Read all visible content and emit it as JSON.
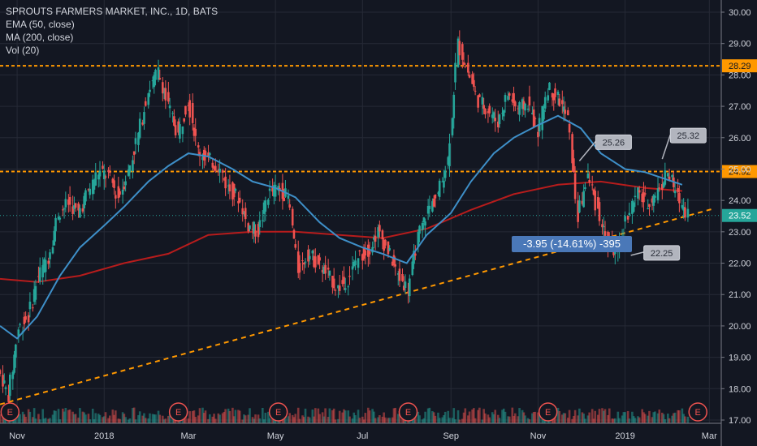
{
  "chart_data": {
    "type": "candlestick",
    "title": "SPROUTS FARMERS MARKET, INC., 1D, BATS",
    "indicators": [
      "EMA (50, close)",
      "MA (200, close)",
      "Vol (20)"
    ],
    "x_ticks": [
      "Nov",
      "2018",
      "Mar",
      "May",
      "Jul",
      "Sep",
      "Nov",
      "2019",
      "Mar"
    ],
    "y_ticks": [
      "30.00",
      "29.00",
      "28.00",
      "27.00",
      "26.00",
      "25.00",
      "24.00",
      "23.00",
      "22.00",
      "21.00",
      "20.00",
      "19.00",
      "18.00",
      "17.00"
    ],
    "ylim": [
      17.0,
      30.0
    ],
    "horizontal_levels": [
      {
        "value": 28.29,
        "label": "28.29"
      },
      {
        "value": 24.92,
        "label": "24.92"
      }
    ],
    "last_price": {
      "value": 23.52,
      "label": "23.52"
    },
    "price_path": [
      [
        "2017-10-20",
        18.6
      ],
      [
        "2017-10-27",
        17.8
      ],
      [
        "2017-11-03",
        19.9
      ],
      [
        "2017-11-10",
        20.3
      ],
      [
        "2017-11-17",
        21.6
      ],
      [
        "2017-11-24",
        22.2
      ],
      [
        "2017-12-01",
        23.6
      ],
      [
        "2017-12-08",
        23.9
      ],
      [
        "2017-12-15",
        23.6
      ],
      [
        "2017-12-22",
        24.3
      ],
      [
        "2017-12-29",
        24.9
      ],
      [
        "2018-01-05",
        24.8
      ],
      [
        "2018-01-12",
        24.1
      ],
      [
        "2018-01-19",
        24.9
      ],
      [
        "2018-01-26",
        26.1
      ],
      [
        "2018-02-02",
        27.5
      ],
      [
        "2018-02-09",
        28.1
      ],
      [
        "2018-02-16",
        27.0
      ],
      [
        "2018-02-23",
        26.1
      ],
      [
        "2018-03-02",
        27.2
      ],
      [
        "2018-03-09",
        25.6
      ],
      [
        "2018-03-16",
        25.3
      ],
      [
        "2018-03-23",
        25.1
      ],
      [
        "2018-03-30",
        24.4
      ],
      [
        "2018-04-06",
        24.1
      ],
      [
        "2018-04-13",
        23.2
      ],
      [
        "2018-04-20",
        23.0
      ],
      [
        "2018-04-27",
        24.2
      ],
      [
        "2018-05-04",
        24.4
      ],
      [
        "2018-05-11",
        24.1
      ],
      [
        "2018-05-18",
        21.8
      ],
      [
        "2018-05-25",
        22.3
      ],
      [
        "2018-06-01",
        22.0
      ],
      [
        "2018-06-08",
        21.6
      ],
      [
        "2018-06-15",
        21.2
      ],
      [
        "2018-06-22",
        21.5
      ],
      [
        "2018-06-29",
        22.2
      ],
      [
        "2018-07-06",
        22.4
      ],
      [
        "2018-07-13",
        23.0
      ],
      [
        "2018-07-20",
        22.4
      ],
      [
        "2018-07-27",
        21.6
      ],
      [
        "2018-08-03",
        21.2
      ],
      [
        "2018-08-10",
        22.8
      ],
      [
        "2018-08-17",
        23.7
      ],
      [
        "2018-08-24",
        24.2
      ],
      [
        "2018-08-31",
        25.3
      ],
      [
        "2018-09-07",
        29.0
      ],
      [
        "2018-09-14",
        28.1
      ],
      [
        "2018-09-21",
        27.2
      ],
      [
        "2018-09-28",
        26.9
      ],
      [
        "2018-10-05",
        26.5
      ],
      [
        "2018-10-12",
        27.4
      ],
      [
        "2018-10-19",
        26.9
      ],
      [
        "2018-10-26",
        27.1
      ],
      [
        "2018-11-02",
        26.2
      ],
      [
        "2018-11-09",
        27.6
      ],
      [
        "2018-11-16",
        27.3
      ],
      [
        "2018-11-23",
        26.6
      ],
      [
        "2018-11-30",
        23.5
      ],
      [
        "2018-12-07",
        24.8
      ],
      [
        "2018-12-14",
        23.7
      ],
      [
        "2018-12-21",
        22.6
      ],
      [
        "2018-12-28",
        22.3
      ],
      [
        "2019-01-04",
        23.6
      ],
      [
        "2019-01-11",
        24.2
      ],
      [
        "2019-01-18",
        23.9
      ],
      [
        "2019-01-25",
        24.3
      ],
      [
        "2019-02-01",
        24.9
      ],
      [
        "2019-02-08",
        24.1
      ],
      [
        "2019-02-15",
        23.6
      ]
    ],
    "ema50": [
      [
        "2017-10-20",
        20.0
      ],
      [
        "2017-11-01",
        19.6
      ],
      [
        "2017-11-15",
        20.3
      ],
      [
        "2017-12-01",
        21.6
      ],
      [
        "2017-12-15",
        22.5
      ],
      [
        "2018-01-01",
        23.2
      ],
      [
        "2018-01-15",
        23.8
      ],
      [
        "2018-02-01",
        24.6
      ],
      [
        "2018-02-15",
        25.1
      ],
      [
        "2018-03-01",
        25.5
      ],
      [
        "2018-03-15",
        25.4
      ],
      [
        "2018-04-01",
        25.0
      ],
      [
        "2018-04-15",
        24.6
      ],
      [
        "2018-05-01",
        24.4
      ],
      [
        "2018-05-15",
        24.1
      ],
      [
        "2018-06-01",
        23.3
      ],
      [
        "2018-06-15",
        22.8
      ],
      [
        "2018-07-01",
        22.5
      ],
      [
        "2018-07-15",
        22.3
      ],
      [
        "2018-08-01",
        22.0
      ],
      [
        "2018-08-15",
        22.9
      ],
      [
        "2018-09-01",
        23.6
      ],
      [
        "2018-09-15",
        24.6
      ],
      [
        "2018-10-01",
        25.5
      ],
      [
        "2018-10-15",
        26.0
      ],
      [
        "2018-11-01",
        26.4
      ],
      [
        "2018-11-15",
        26.7
      ],
      [
        "2018-12-01",
        26.3
      ],
      [
        "2018-12-15",
        25.5
      ],
      [
        "2019-01-01",
        25.0
      ],
      [
        "2019-01-15",
        24.9
      ],
      [
        "2019-02-10",
        24.5
      ]
    ],
    "ma200": [
      [
        "2017-10-20",
        21.5
      ],
      [
        "2017-11-15",
        21.4
      ],
      [
        "2017-12-15",
        21.6
      ],
      [
        "2018-01-15",
        22.0
      ],
      [
        "2018-02-15",
        22.3
      ],
      [
        "2018-03-15",
        22.9
      ],
      [
        "2018-04-15",
        23.0
      ],
      [
        "2018-05-15",
        23.0
      ],
      [
        "2018-06-15",
        22.9
      ],
      [
        "2018-07-15",
        22.8
      ],
      [
        "2018-08-15",
        23.1
      ],
      [
        "2018-09-15",
        23.7
      ],
      [
        "2018-10-15",
        24.2
      ],
      [
        "2018-11-15",
        24.5
      ],
      [
        "2018-12-15",
        24.6
      ],
      [
        "2019-01-15",
        24.4
      ],
      [
        "2019-02-10",
        24.3
      ]
    ],
    "trendline": {
      "from": [
        "2017-10-20",
        17.5
      ],
      "to": [
        "2019-03-05",
        23.75
      ]
    },
    "callouts": [
      {
        "label": "25.26",
        "x": "2018-11-30",
        "y": 25.26
      },
      {
        "label": "25.32",
        "x": "2019-01-27",
        "y": 25.32
      },
      {
        "label": "22.25",
        "x": "2019-01-05",
        "y": 22.25
      }
    ],
    "measure_label": "-3.95 (-14.61%) -395",
    "earnings_markers": [
      {
        "x": "2017-10-27",
        "label": "E"
      },
      {
        "x": "2018-02-22",
        "label": "E"
      },
      {
        "x": "2018-05-03",
        "label": "E"
      },
      {
        "x": "2018-08-02",
        "label": "E"
      },
      {
        "x": "2018-11-08",
        "label": "E"
      },
      {
        "x": "2019-02-21",
        "label": "E"
      }
    ]
  },
  "colors": {
    "background": "#131722",
    "grid": "#262a36",
    "up": "#26a69a",
    "down": "#ef5350",
    "ema": "#3e8fc8",
    "ma": "#b71c1c",
    "level": "#ff9800",
    "text": "#d1d4dc",
    "callout_bg": "#b2b5be"
  }
}
